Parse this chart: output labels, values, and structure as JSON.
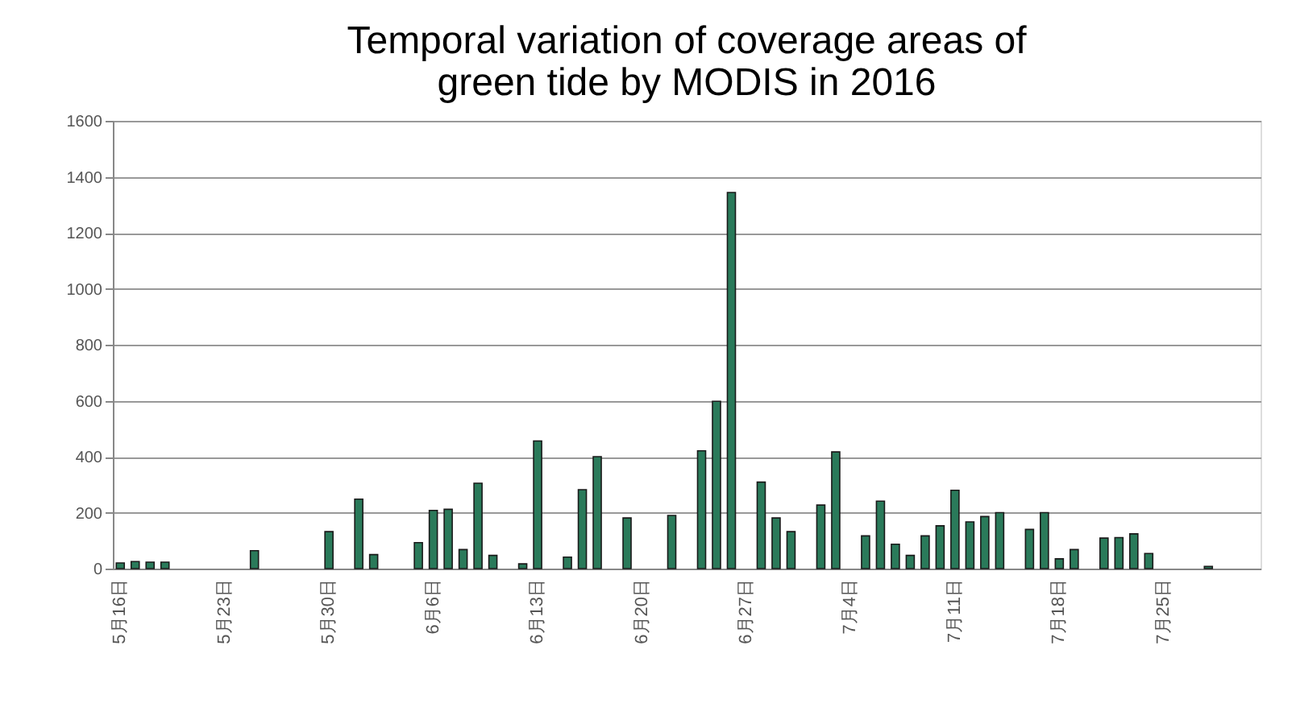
{
  "chart_data": {
    "type": "bar",
    "title": [
      "Temporal variation of coverage areas of",
      "green tide by MODIS in 2016"
    ],
    "categories": [
      "5月16日",
      null,
      null,
      null,
      null,
      null,
      null,
      "5月23日",
      null,
      null,
      null,
      null,
      null,
      null,
      "5月30日",
      null,
      null,
      null,
      null,
      null,
      null,
      "6月6日",
      null,
      null,
      null,
      null,
      null,
      null,
      "6月13日",
      null,
      null,
      null,
      null,
      null,
      null,
      "6月20日",
      null,
      null,
      null,
      null,
      null,
      null,
      "6月27日",
      null,
      null,
      null,
      null,
      null,
      null,
      "7月4日",
      null,
      null,
      null,
      null,
      null,
      null,
      "7月11日",
      null,
      null,
      null,
      null,
      null,
      null,
      "7月18日",
      null,
      null,
      null,
      null,
      null,
      null,
      "7月25日",
      null,
      null,
      null,
      null,
      null,
      null
    ],
    "values": [
      20,
      25,
      23,
      23,
      null,
      null,
      null,
      null,
      null,
      64,
      null,
      null,
      null,
      null,
      132,
      null,
      248,
      50,
      null,
      null,
      93,
      208,
      212,
      68,
      305,
      47,
      null,
      17,
      456,
      null,
      41,
      282,
      400,
      null,
      181,
      null,
      null,
      190,
      null,
      421,
      598,
      1344,
      null,
      309,
      181,
      132,
      null,
      227,
      417,
      null,
      117,
      241,
      87,
      47,
      117,
      153,
      280,
      167,
      186,
      200,
      null,
      140,
      200,
      35,
      68,
      null,
      109,
      111,
      124,
      54,
      null,
      null,
      null,
      8,
      null,
      null,
      null
    ],
    "color": "#2a7a5a",
    "ylim": [
      0,
      1600
    ],
    "yticks": [
      0,
      200,
      400,
      600,
      800,
      1000,
      1200,
      1400,
      1600
    ],
    "grid": "y"
  }
}
